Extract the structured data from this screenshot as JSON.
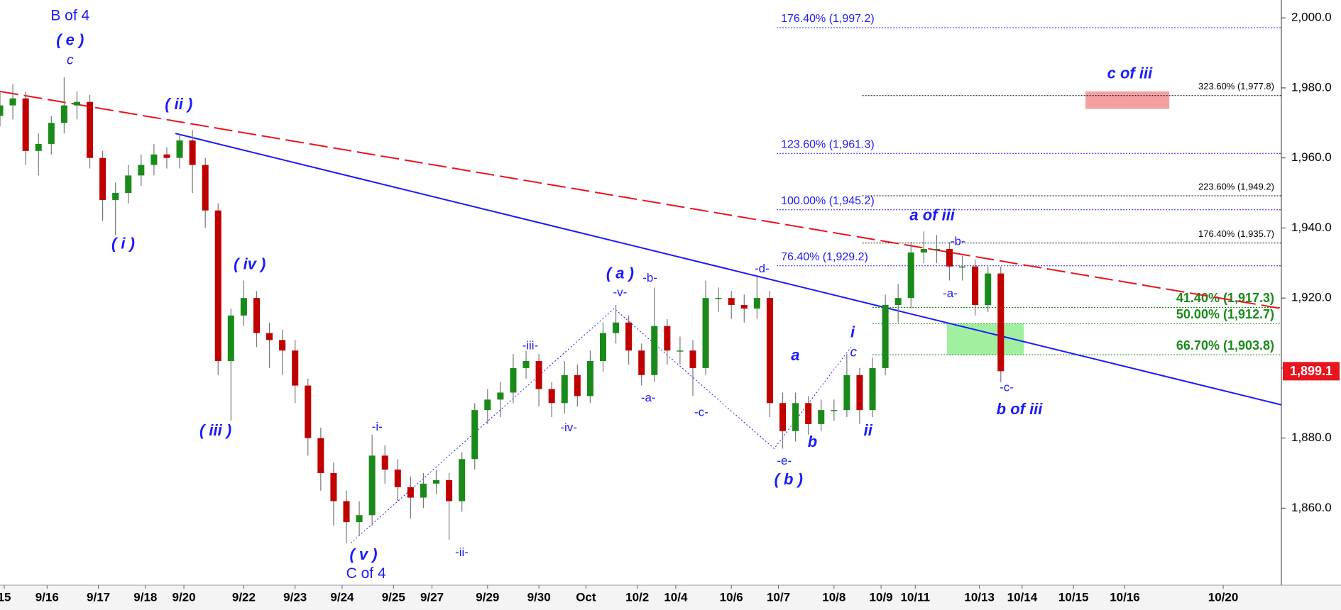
{
  "chart_data": {
    "type": "candlestick",
    "x": [
      0,
      3,
      6,
      9,
      12,
      15,
      18,
      21,
      24,
      27,
      30,
      33,
      36,
      39,
      42,
      45,
      48,
      51,
      54,
      57,
      60,
      63,
      66,
      69,
      72,
      75,
      78,
      81,
      84,
      87,
      90,
      93,
      96,
      99,
      102,
      105,
      108,
      111,
      114,
      117,
      120,
      123,
      126,
      129,
      132,
      135,
      138,
      141,
      144,
      147,
      150,
      153,
      156,
      159,
      162,
      165,
      168,
      171,
      174,
      177,
      180,
      183,
      186,
      189,
      192,
      195,
      198,
      201,
      204,
      207,
      210,
      213,
      216,
      219,
      222,
      225,
      228,
      231,
      234
    ],
    "open": [
      1972,
      1975,
      1977,
      1962,
      1964,
      1970,
      1975,
      1976,
      1960,
      1948,
      1950,
      1955,
      1958,
      1961,
      1960,
      1965,
      1958,
      1945,
      1902,
      1915,
      1920,
      1910,
      1908,
      1905,
      1895,
      1880,
      1870,
      1862,
      1856,
      1858,
      1875,
      1871,
      1866,
      1863,
      1867,
      1868,
      1862,
      1874,
      1888,
      1891,
      1893,
      1900,
      1902,
      1894,
      1890,
      1898,
      1892,
      1902,
      1910,
      1913,
      1905,
      1898,
      1912,
      1905,
      1905,
      1900,
      1920,
      1920,
      1918,
      1917,
      1920,
      1890,
      1882,
      1890,
      1884,
      1888,
      1888,
      1898,
      1888,
      1900,
      1918,
      1920,
      1933,
      1934,
      1934,
      1929,
      1929,
      1918,
      1927
    ],
    "high": [
      1979,
      1981,
      1979,
      1967,
      1972,
      1983,
      1979,
      1978,
      1962,
      1953,
      1958,
      1961,
      1964,
      1963,
      1967,
      1968,
      1960,
      1947,
      1917,
      1925,
      1922,
      1913,
      1911,
      1908,
      1897,
      1883,
      1873,
      1865,
      1862,
      1881,
      1878,
      1874,
      1869,
      1870,
      1871,
      1870,
      1876,
      1890,
      1894,
      1896,
      1904,
      1905,
      1904,
      1896,
      1902,
      1901,
      1905,
      1913,
      1918,
      1915,
      1907,
      1923,
      1914,
      1909,
      1908,
      1925,
      1923,
      1922,
      1921,
      1926,
      1922,
      1893,
      1893,
      1892,
      1891,
      1891,
      1904,
      1900,
      1903,
      1921,
      1924,
      1936,
      1939,
      1938,
      1936,
      1932,
      1931,
      1929,
      1929
    ],
    "low": [
      1969,
      1971,
      1958,
      1955,
      1961,
      1967,
      1971,
      1957,
      1942,
      1938,
      1947,
      1952,
      1955,
      1957,
      1957,
      1950,
      1940,
      1898,
      1885,
      1912,
      1906,
      1900,
      1898,
      1890,
      1875,
      1865,
      1855,
      1850,
      1852,
      1855,
      1867,
      1862,
      1857,
      1860,
      1864,
      1851,
      1859,
      1871,
      1884,
      1886,
      1890,
      1897,
      1889,
      1886,
      1887,
      1889,
      1890,
      1899,
      1907,
      1901,
      1895,
      1896,
      1901,
      1901,
      1892,
      1898,
      1916,
      1914,
      1913,
      1914,
      1886,
      1877,
      1879,
      1881,
      1882,
      1885,
      1886,
      1884,
      1886,
      1898,
      1913,
      1917,
      1930,
      1930,
      1925,
      1925,
      1915,
      1916,
      1896
    ],
    "close": [
      1975,
      1977,
      1962,
      1964,
      1970,
      1975,
      1976,
      1960,
      1948,
      1950,
      1955,
      1958,
      1961,
      1960,
      1965,
      1958,
      1945,
      1902,
      1915,
      1920,
      1910,
      1908,
      1905,
      1895,
      1880,
      1870,
      1862,
      1856,
      1858,
      1875,
      1871,
      1866,
      1863,
      1867,
      1868,
      1862,
      1874,
      1888,
      1891,
      1893,
      1900,
      1902,
      1894,
      1890,
      1898,
      1892,
      1902,
      1910,
      1913,
      1905,
      1898,
      1912,
      1905,
      1905,
      1900,
      1920,
      1920,
      1918,
      1917,
      1920,
      1890,
      1882,
      1890,
      1884,
      1888,
      1888,
      1898,
      1888,
      1900,
      1918,
      1920,
      1933,
      1934,
      1934,
      1929,
      1929,
      1918,
      1927,
      1899.1
    ],
    "up_color": "#1a8a1a",
    "down_color": "#c00000",
    "wick_color": "#777777",
    "xlim": [
      0,
      299.6
    ],
    "xticks": [
      {
        "value": 1,
        "label": "15"
      },
      {
        "value": 11,
        "label": "9/16"
      },
      {
        "value": 23,
        "label": "9/17"
      },
      {
        "value": 34,
        "label": "9/18"
      },
      {
        "value": 43,
        "label": "9/20"
      },
      {
        "value": 57,
        "label": "9/22"
      },
      {
        "value": 69,
        "label": "9/23"
      },
      {
        "value": 80,
        "label": "9/24"
      },
      {
        "value": 92,
        "label": "9/25"
      },
      {
        "value": 101,
        "label": "9/27"
      },
      {
        "value": 114,
        "label": "9/29"
      },
      {
        "value": 126,
        "label": "9/30"
      },
      {
        "value": 137,
        "label": "Oct"
      },
      {
        "value": 149,
        "label": "10/2"
      },
      {
        "value": 158,
        "label": "10/4"
      },
      {
        "value": 171,
        "label": "10/6"
      },
      {
        "value": 182,
        "label": "10/7"
      },
      {
        "value": 195,
        "label": "10/8"
      },
      {
        "value": 206,
        "label": "10/9"
      },
      {
        "value": 214,
        "label": "10/11"
      },
      {
        "value": 229,
        "label": "10/13"
      },
      {
        "value": 239,
        "label": "10/14"
      },
      {
        "value": 251,
        "label": "10/15"
      },
      {
        "value": 263,
        "label": "10/16"
      },
      {
        "value": 286,
        "label": "10/20"
      }
    ],
    "ylim": [
      1838,
      2005.1
    ],
    "yticks": [
      {
        "value": 1860,
        "label": "1,860.0"
      },
      {
        "value": 1880,
        "label": "1,880.0"
      },
      {
        "value": 1900,
        "label": "1,900.0"
      },
      {
        "value": 1920,
        "label": "1,920.0"
      },
      {
        "value": 1940,
        "label": "1,940.0"
      },
      {
        "value": 1960,
        "label": "1,960.0"
      },
      {
        "value": 1980,
        "label": "1,980.0"
      },
      {
        "value": 2000,
        "label": "2,000.0"
      }
    ],
    "last_price": {
      "value": 1899.1,
      "label": "1,899.1",
      "color": "#e8141e"
    },
    "levels": [
      {
        "label": "176.40% (1,997.2)",
        "value": 1997.2,
        "color": "#1a1aff",
        "x_start": 181.6,
        "align": "left"
      },
      {
        "label": "123.60% (1,961.3)",
        "value": 1961.3,
        "color": "#1a1aff",
        "x_start": 181.6,
        "align": "left"
      },
      {
        "label": "100.00% (1,945.2)",
        "value": 1945.2,
        "color": "#1a1aff",
        "x_start": 181.6,
        "align": "left"
      },
      {
        "label": "76.40% (1,929.2)",
        "value": 1929.2,
        "color": "#1a1aff",
        "x_start": 181.6,
        "align": "left"
      },
      {
        "label": "323.60% (1,977.8)",
        "value": 1977.8,
        "color": "#000000",
        "x_start": 201.6,
        "align": "right"
      },
      {
        "label": "223.60% (1,949.2)",
        "value": 1949.2,
        "color": "#000000",
        "x_start": 201.6,
        "align": "right"
      },
      {
        "label": "176.40% (1,935.7)",
        "value": 1935.7,
        "color": "#000000",
        "x_start": 201.6,
        "align": "right"
      },
      {
        "label": "41.40% (1,917.3)",
        "value": 1917.3,
        "color": "#1a8a1a",
        "x_start": 204,
        "align": "right"
      },
      {
        "label": "50.00% (1,912.7)",
        "value": 1912.7,
        "color": "#1a8a1a",
        "x_start": 204,
        "align": "right"
      },
      {
        "label": "66.70% (1,903.8)",
        "value": 1903.8,
        "color": "#1a8a1a",
        "x_start": 204,
        "align": "right"
      }
    ],
    "trendlines": [
      {
        "x": [
          0,
          299.6
        ],
        "y": [
          1979,
          1917
        ],
        "color": "#e8141e",
        "dashed": true
      },
      {
        "x": [
          41,
          299.6
        ],
        "y": [
          1967,
          1889.5
        ],
        "color": "#1a1aff",
        "dashed": false
      }
    ],
    "zones": [
      {
        "x": [
          253.8,
          273.4
        ],
        "y": [
          1974,
          1979
        ],
        "color": "#f4a0a0"
      },
      {
        "x": [
          221.4,
          239.4
        ],
        "y": [
          1903.8,
          1912.7
        ],
        "color": "#a0f0a0"
      }
    ],
    "wave_lines": {
      "x": [
        82,
        143.6,
        181,
        199
      ],
      "y": [
        1850,
        1917,
        1877,
        1906
      ],
      "color": "#1a1aff"
    },
    "wave_labels": [
      "B of 4",
      "( e )",
      "c",
      "( ii )",
      "( i )",
      "( iv )",
      "( iii )",
      "-i-",
      "( v )",
      "C of 4",
      "-ii-",
      "-iii-",
      "-iv-",
      "( a )",
      "-v-",
      "-b-",
      "-a-",
      "-c-",
      "-d-",
      "-e-",
      "( b )",
      "a",
      "b",
      "i",
      "c",
      "ii",
      "a of iii",
      "-b-",
      "-a-",
      "-c-",
      "b of iii",
      "c of iii"
    ]
  }
}
